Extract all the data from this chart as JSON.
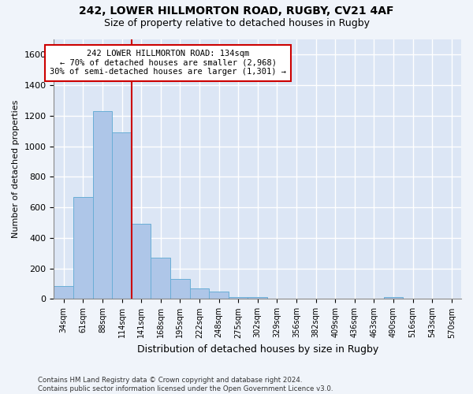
{
  "title1": "242, LOWER HILLMORTON ROAD, RUGBY, CV21 4AF",
  "title2": "Size of property relative to detached houses in Rugby",
  "xlabel": "Distribution of detached houses by size in Rugby",
  "ylabel": "Number of detached properties",
  "footer": "Contains HM Land Registry data © Crown copyright and database right 2024.\nContains public sector information licensed under the Open Government Licence v3.0.",
  "annotation_line1": "242 LOWER HILLMORTON ROAD: 134sqm",
  "annotation_line2": "← 70% of detached houses are smaller (2,968)",
  "annotation_line3": "30% of semi-detached houses are larger (1,301) →",
  "bar_color": "#aec6e8",
  "bar_edge_color": "#6aaed6",
  "vline_color": "#cc0000",
  "annotation_box_color": "#ffffff",
  "annotation_box_edge": "#cc0000",
  "background_color": "#dce6f5",
  "fig_background_color": "#f0f4fa",
  "grid_color": "#ffffff",
  "categories": [
    "34sqm",
    "61sqm",
    "88sqm",
    "114sqm",
    "141sqm",
    "168sqm",
    "195sqm",
    "222sqm",
    "248sqm",
    "275sqm",
    "302sqm",
    "329sqm",
    "356sqm",
    "382sqm",
    "409sqm",
    "436sqm",
    "463sqm",
    "490sqm",
    "516sqm",
    "543sqm",
    "570sqm"
  ],
  "values": [
    85,
    670,
    1230,
    1090,
    490,
    270,
    130,
    70,
    50,
    15,
    15,
    0,
    0,
    0,
    0,
    0,
    0,
    15,
    0,
    0,
    0
  ],
  "ylim": [
    0,
    1700
  ],
  "yticks": [
    0,
    200,
    400,
    600,
    800,
    1000,
    1200,
    1400,
    1600
  ],
  "vline_x": 3.5,
  "figsize": [
    6.0,
    5.0
  ],
  "dpi": 100
}
